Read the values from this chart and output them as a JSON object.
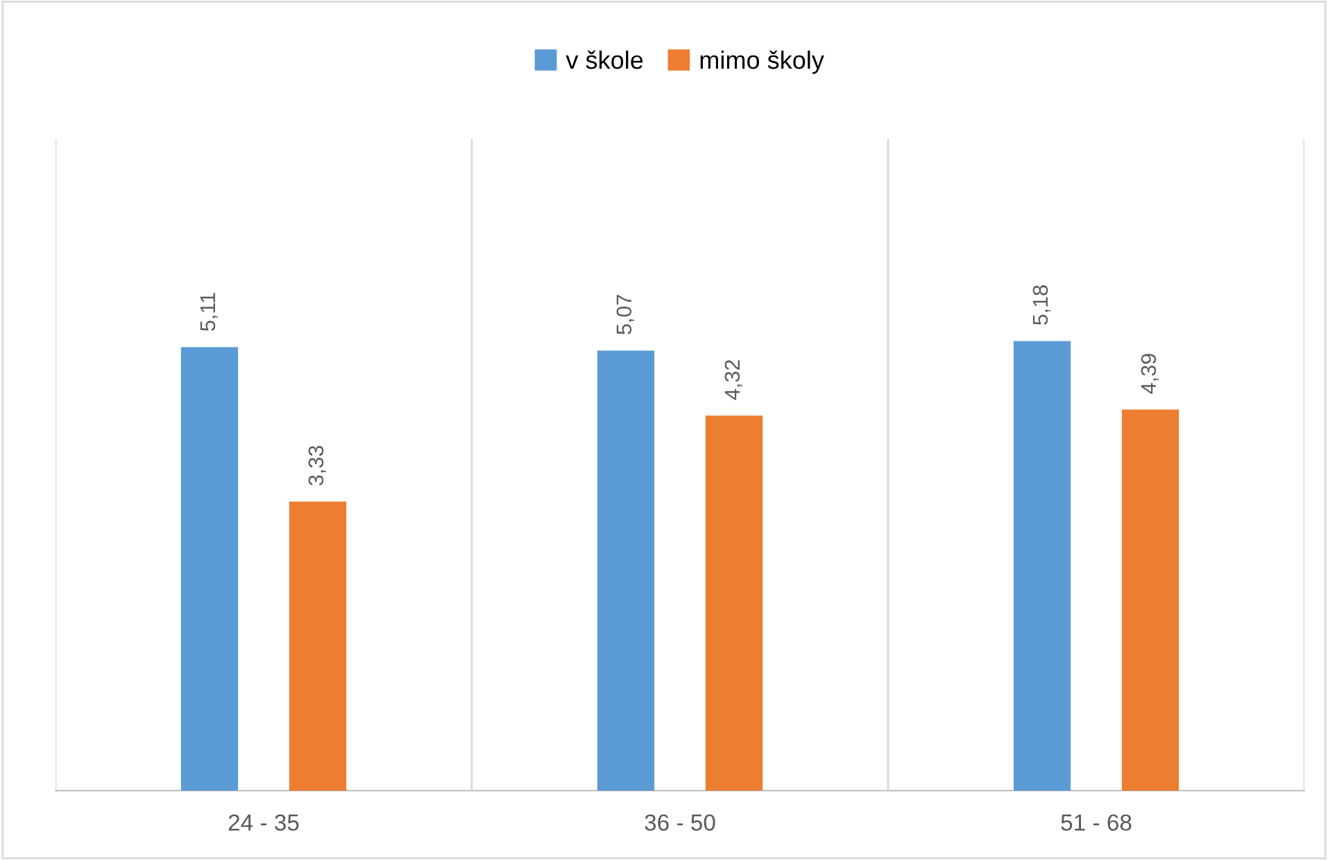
{
  "chart_data": {
    "type": "bar",
    "categories": [
      "24 - 35",
      "36 - 50",
      "51 - 68"
    ],
    "series": [
      {
        "name": "v škole",
        "color": "#5b9bd5",
        "values": [
          5.11,
          5.07,
          5.18
        ],
        "value_labels": [
          "5,11",
          "5,07",
          "5,18"
        ]
      },
      {
        "name": "mimo školy",
        "color": "#ed7d31",
        "values": [
          3.33,
          4.32,
          4.39
        ],
        "value_labels": [
          "3,33",
          "4,32",
          "4,39"
        ]
      }
    ],
    "grid": "x",
    "legend": "top"
  }
}
